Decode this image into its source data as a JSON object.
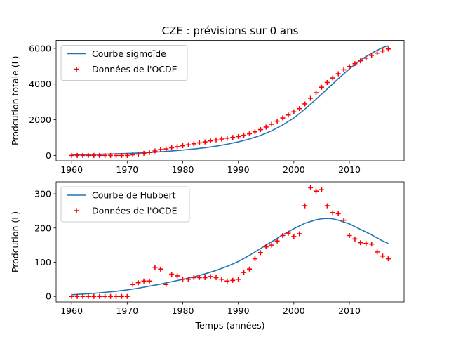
{
  "figure": {
    "title": "CZE : prévisions sur 0 ans",
    "colors": {
      "curve": "#1f77b4",
      "points": "#ff0000"
    }
  },
  "chart_data": [
    {
      "type": "line",
      "ylabel": "Prodcution totale (L)",
      "xlabel": "",
      "xlim": [
        1957.2,
        2019.85
      ],
      "ylim": [
        -300,
        6450
      ],
      "xticks": [
        1960,
        1970,
        1980,
        1990,
        2000,
        2010
      ],
      "yticks": [
        0,
        2000,
        4000,
        6000
      ],
      "legend": {
        "position": "top-left"
      },
      "series": [
        {
          "name": "Courbe sigmoïde",
          "kind": "line",
          "x": [
            1960,
            1962,
            1964,
            1966,
            1968,
            1970,
            1972,
            1974,
            1976,
            1978,
            1980,
            1982,
            1984,
            1986,
            1988,
            1990,
            1992,
            1994,
            1996,
            1998,
            2000,
            2002,
            2004,
            2006,
            2008,
            2010,
            2012,
            2014,
            2016,
            2017
          ],
          "y": [
            35,
            45,
            55,
            70,
            90,
            110,
            135,
            165,
            205,
            250,
            300,
            360,
            430,
            520,
            630,
            760,
            920,
            1120,
            1380,
            1710,
            2100,
            2600,
            3150,
            3720,
            4300,
            4850,
            5350,
            5730,
            6050,
            6150
          ]
        },
        {
          "name": "Données de l'OCDE",
          "kind": "scatter",
          "x": [
            1960,
            1961,
            1962,
            1963,
            1964,
            1965,
            1966,
            1967,
            1968,
            1969,
            1970,
            1971,
            1972,
            1973,
            1974,
            1975,
            1976,
            1977,
            1978,
            1979,
            1980,
            1981,
            1982,
            1983,
            1984,
            1985,
            1986,
            1987,
            1988,
            1989,
            1990,
            1991,
            1992,
            1993,
            1994,
            1995,
            1996,
            1997,
            1998,
            1999,
            2000,
            2001,
            2002,
            2003,
            2004,
            2005,
            2006,
            2007,
            2008,
            2009,
            2010,
            2011,
            2012,
            2013,
            2014,
            2015,
            2016,
            2017
          ],
          "y": [
            0,
            0,
            0,
            0,
            0,
            0,
            0,
            0,
            0,
            0,
            0,
            35,
            75,
            120,
            165,
            250,
            330,
            365,
            430,
            490,
            545,
            595,
            650,
            705,
            760,
            815,
            870,
            920,
            965,
            1010,
            1060,
            1130,
            1210,
            1320,
            1450,
            1590,
            1750,
            1920,
            2100,
            2270,
            2445,
            2625,
            2890,
            3205,
            3515,
            3825,
            4090,
            4340,
            4580,
            4800,
            4980,
            5145,
            5300,
            5455,
            5610,
            5735,
            5855,
            5965
          ]
        }
      ]
    },
    {
      "type": "line",
      "ylabel": "Prodcution (L)",
      "xlabel": "Temps (années)",
      "xlim": [
        1957.2,
        2019.85
      ],
      "ylim": [
        -16,
        335
      ],
      "xticks": [
        1960,
        1970,
        1980,
        1990,
        2000,
        2010
      ],
      "yticks": [
        0,
        100,
        200,
        300
      ],
      "legend": {
        "position": "top-left"
      },
      "series": [
        {
          "name": "Courbe de Hubbert",
          "kind": "line",
          "x": [
            1960,
            1962,
            1964,
            1966,
            1968,
            1970,
            1972,
            1974,
            1976,
            1978,
            1980,
            1982,
            1984,
            1986,
            1988,
            1990,
            1992,
            1994,
            1996,
            1998,
            2000,
            2002,
            2004,
            2005,
            2006,
            2007,
            2008,
            2010,
            2012,
            2014,
            2016,
            2017
          ],
          "y": [
            5,
            7,
            9,
            12,
            15,
            19,
            24,
            30,
            36,
            43,
            50,
            57,
            66,
            76,
            88,
            102,
            120,
            140,
            160,
            180,
            198,
            214,
            224,
            227,
            228,
            227,
            223,
            212,
            196,
            180,
            162,
            155
          ]
        },
        {
          "name": "Données de l'OCDE",
          "kind": "scatter",
          "x": [
            1960,
            1961,
            1962,
            1963,
            1964,
            1965,
            1966,
            1967,
            1968,
            1969,
            1970,
            1971,
            1972,
            1973,
            1974,
            1975,
            1976,
            1977,
            1978,
            1979,
            1980,
            1981,
            1982,
            1983,
            1984,
            1985,
            1986,
            1987,
            1988,
            1989,
            1990,
            1991,
            1992,
            1993,
            1994,
            1995,
            1996,
            1997,
            1998,
            1999,
            2000,
            2001,
            2002,
            2003,
            2004,
            2005,
            2006,
            2007,
            2008,
            2009,
            2010,
            2011,
            2012,
            2013,
            2014,
            2015,
            2016,
            2017
          ],
          "y": [
            0,
            0,
            0,
            0,
            0,
            0,
            0,
            0,
            0,
            0,
            0,
            35,
            40,
            45,
            45,
            85,
            80,
            35,
            65,
            60,
            50,
            50,
            55,
            55,
            55,
            58,
            55,
            50,
            45,
            47,
            50,
            70,
            80,
            110,
            128,
            145,
            150,
            162,
            178,
            185,
            175,
            183,
            265,
            318,
            308,
            312,
            265,
            245,
            242,
            223,
            178,
            168,
            157,
            155,
            153,
            130,
            118,
            110
          ]
        }
      ]
    }
  ]
}
